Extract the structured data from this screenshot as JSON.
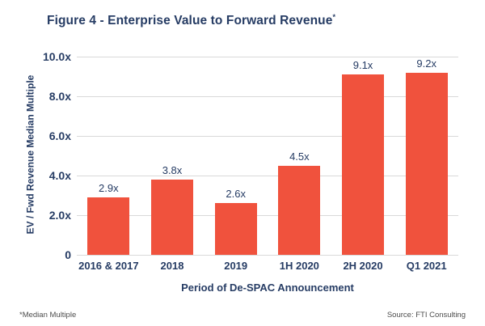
{
  "title": {
    "text": "Figure 4 - Enterprise Value to Forward Revenue",
    "superscript": "*"
  },
  "footnote": "*Median Multiple",
  "source": "Source: FTI Consulting",
  "colors": {
    "bar": "#F0523D",
    "text_navy": "#263C64",
    "gridline": "#D9D9D9",
    "footer_text": "#4D4D4D"
  },
  "chart_data": {
    "type": "bar",
    "title": "Figure 4 - Enterprise Value to Forward Revenue*",
    "categories": [
      "2016 & 2017",
      "2018",
      "2019",
      "1H 2020",
      "2H 2020",
      "Q1 2021"
    ],
    "values": [
      2.9,
      3.8,
      2.6,
      4.5,
      9.1,
      9.2
    ],
    "value_labels": [
      "2.9x",
      "3.8x",
      "2.6x",
      "4.5x",
      "9.1x",
      "9.2x"
    ],
    "xlabel": "Period of De-SPAC Announcement",
    "ylabel": "EV / Fwd Revenue Median Multiple",
    "ylim": [
      0,
      10
    ],
    "yticks": [
      0,
      2,
      4,
      6,
      8,
      10
    ],
    "ytick_labels": [
      "0",
      "2.0x",
      "4.0x",
      "6.0x",
      "8.0x",
      "10.0x"
    ],
    "grid": true,
    "legend": false
  }
}
